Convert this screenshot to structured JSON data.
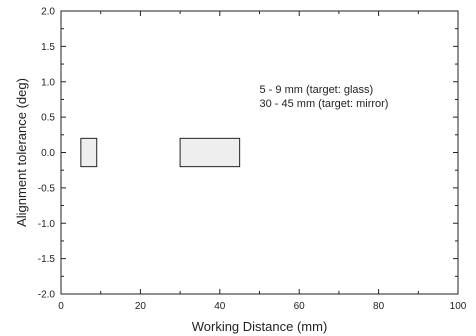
{
  "chart_data": {
    "type": "bar",
    "title": "",
    "xlabel": "Working Distance (mm)",
    "ylabel": "Alignment tolerance (deg)",
    "xlim": [
      0,
      100
    ],
    "ylim": [
      -2.0,
      2.0
    ],
    "xticks": [
      "0",
      "20",
      "40",
      "60",
      "80",
      "100"
    ],
    "xtick_values": [
      0,
      20,
      40,
      60,
      80,
      100
    ],
    "yticks": [
      "2.0",
      "1.5",
      "1.0",
      "0.5",
      "0.0",
      "-0.5",
      "-1.0",
      "-1.5",
      "-2.0"
    ],
    "ytick_values": [
      2.0,
      1.5,
      1.0,
      0.5,
      0.0,
      -0.5,
      -1.0,
      -1.5,
      -2.0
    ],
    "grid": false,
    "boxes": [
      {
        "x": [
          5,
          9
        ],
        "y": [
          -0.2,
          0.2
        ],
        "target": "glass"
      },
      {
        "x": [
          30,
          45
        ],
        "y": [
          -0.2,
          0.2
        ],
        "target": "mirror"
      }
    ],
    "annotations": [
      {
        "text": "5 - 9 mm (target: glass)",
        "x": 50,
        "y": 0.9
      },
      {
        "text": "30 - 45 mm (target: mirror)",
        "x": 50,
        "y": 0.7
      }
    ],
    "colors": {
      "box_fill": "#eeeeee",
      "box_stroke": "#222222",
      "axis": "#222222"
    }
  }
}
